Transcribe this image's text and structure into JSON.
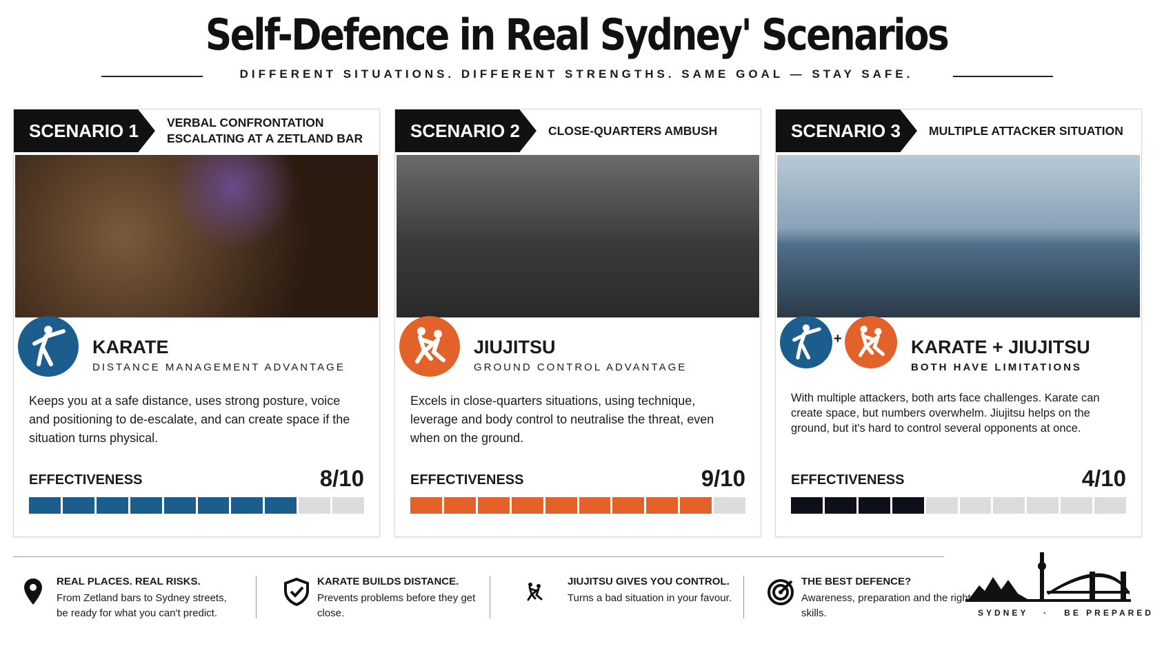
{
  "header": {
    "title": "Self-Defence in Real Sydney' Scenarios",
    "subtitle": "DIFFERENT SITUATIONS. DIFFERENT STRENGTHS. SAME GOAL — STAY SAFE."
  },
  "scenarios": [
    {
      "label": "SCENARIO 1",
      "situation": "VERBAL CONFRONTATION ESCALATING AT A ZETLAND BAR",
      "icons": [
        "karate"
      ],
      "art": "KARATE",
      "advantage": "DISTANCE MANAGEMENT ADVANTAGE",
      "description": "Keeps you at a safe distance, uses strong posture, voice and positioning to de-escalate, and can create space if the situation turns physical.",
      "effectiveness_label": "EFFECTIVENESS",
      "score": {
        "value": 8,
        "max": 10,
        "label": "8/10"
      },
      "color": "#1b5e8e"
    },
    {
      "label": "SCENARIO 2",
      "situation": "CLOSE-QUARTERS AMBUSH",
      "icons": [
        "jiujitsu"
      ],
      "art": "JIUJITSU",
      "advantage": "GROUND CONTROL ADVANTAGE",
      "description": "Excels in close-quarters situations, using technique, leverage and body control to neutralise the threat, even when on the ground.",
      "effectiveness_label": "EFFECTIVENESS",
      "score": {
        "value": 9,
        "max": 10,
        "label": "9/10"
      },
      "color": "#e2622a"
    },
    {
      "label": "SCENARIO 3",
      "situation": "MULTIPLE ATTACKER SITUATION",
      "icons": [
        "karate",
        "jiujitsu"
      ],
      "icon_separator": "+",
      "art": "KARATE + JIUJITSU",
      "advantage": "BOTH HAVE LIMITATIONS",
      "description": "With multiple attackers, both arts face challenges. Karate can create space, but numbers overwhelm. Jiujitsu helps on the ground, but it's hard to control several opponents at once.",
      "effectiveness_label": "EFFECTIVENESS",
      "score": {
        "value": 4,
        "max": 10,
        "label": "4/10"
      },
      "color": "#0d0f1a"
    }
  ],
  "footer": {
    "items": [
      {
        "title": "REAL PLACES. REAL RISKS.",
        "text": "From Zetland bars to Sydney streets, be ready for what you can't predict."
      },
      {
        "title": "KARATE BUILDS DISTANCE.",
        "text": "Prevents problems before they get close."
      },
      {
        "title": "JIUJITSU GIVES YOU CONTROL.",
        "text": "Turns a bad situation in your favour."
      },
      {
        "title": "THE BEST DEFENCE?",
        "text": "Awareness, preparation and the right skills."
      }
    ],
    "logo": {
      "place": "SYDNEY",
      "separator": "·",
      "tagline": "BE PREPARED"
    }
  }
}
